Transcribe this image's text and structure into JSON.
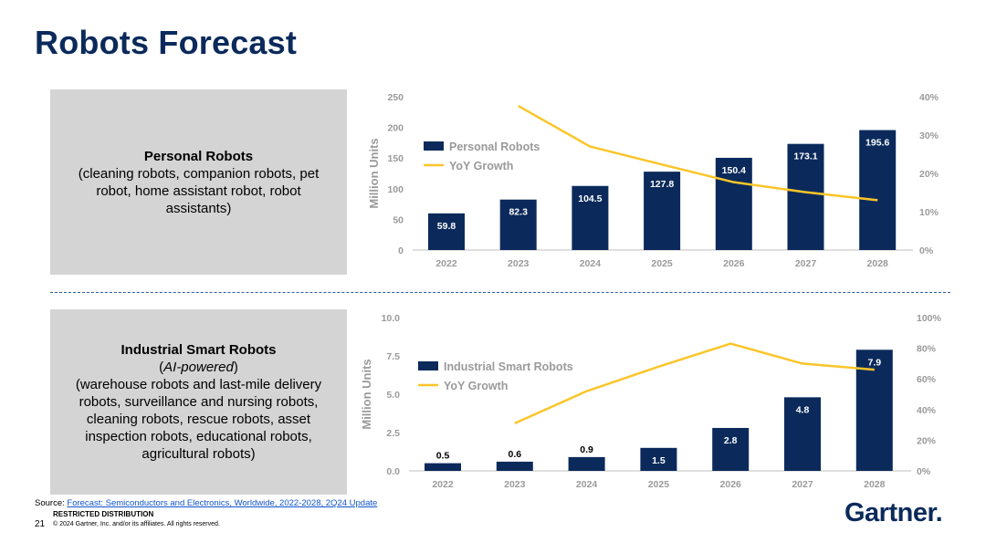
{
  "title": "Robots Forecast",
  "colors": {
    "bar": "#0b2a5b",
    "line": "#fbc52a",
    "axis_text": "#9a9a9a"
  },
  "personal": {
    "heading": "Personal Robots",
    "description": "(cleaning robots, companion robots, pet robot, home assistant robot, robot assistants)"
  },
  "industrial": {
    "heading": "Industrial Smart Robots",
    "subheading": "AI-powered",
    "description": "(warehouse robots and last-mile delivery robots, surveillance and nursing robots, cleaning robots, rescue robots, asset inspection robots, educational robots, agricultural robots)"
  },
  "chart_data": [
    {
      "type": "bar",
      "categories": [
        "2022",
        "2023",
        "2024",
        "2025",
        "2026",
        "2027",
        "2028"
      ],
      "series": [
        {
          "name": "Personal Robots",
          "values": [
            59.8,
            82.3,
            104.5,
            127.8,
            150.4,
            173.1,
            195.6
          ],
          "data_labels": [
            "59.8",
            "82.3",
            "104.5",
            "127.8",
            "150.4",
            "173.1",
            "195.6"
          ]
        },
        {
          "name": "YoY Growth",
          "type": "line",
          "axis": "right",
          "values": [
            null,
            37.6,
            27.0,
            22.3,
            17.7,
            15.1,
            13.0
          ]
        }
      ],
      "ylabel": "Million Units",
      "ylim": [
        0,
        250
      ],
      "yticks": [
        "0",
        "50",
        "100",
        "150",
        "200",
        "250"
      ],
      "y2lim": [
        0,
        40
      ],
      "y2ticks": [
        "0%",
        "10%",
        "20%",
        "30%",
        "40%"
      ],
      "legend": "top-left"
    },
    {
      "type": "bar",
      "categories": [
        "2022",
        "2023",
        "2024",
        "2025",
        "2026",
        "2027",
        "2028"
      ],
      "series": [
        {
          "name": "Industrial Smart Robots",
          "values": [
            0.5,
            0.6,
            0.9,
            1.5,
            2.8,
            4.8,
            7.9
          ],
          "data_labels": [
            "0.5",
            "0.6",
            "0.9",
            "1.5",
            "2.8",
            "4.8",
            "7.9"
          ]
        },
        {
          "name": "YoY Growth",
          "type": "line",
          "axis": "right",
          "values": [
            null,
            31,
            52,
            68,
            83,
            70,
            66
          ]
        }
      ],
      "ylabel": "Million Units",
      "ylim": [
        0,
        10
      ],
      "yticks": [
        "0.0",
        "2.5",
        "5.0",
        "7.5",
        "10.0"
      ],
      "y2lim": [
        0,
        100
      ],
      "y2ticks": [
        "0%",
        "20%",
        "40%",
        "60%",
        "80%",
        "100%"
      ],
      "legend": "top-left"
    }
  ],
  "footer": {
    "source_prefix": "Source: ",
    "source_link": "Forecast: Semiconductors and Electronics, Worldwide, 2022-2028, 2Q24 Update",
    "restricted": "RESTRICTED DISTRIBUTION",
    "page_number": "21",
    "copyright": "© 2024 Gartner, Inc. and/or its affiliates. All rights reserved.",
    "logo": "Gartner",
    "logo_mark": "."
  }
}
